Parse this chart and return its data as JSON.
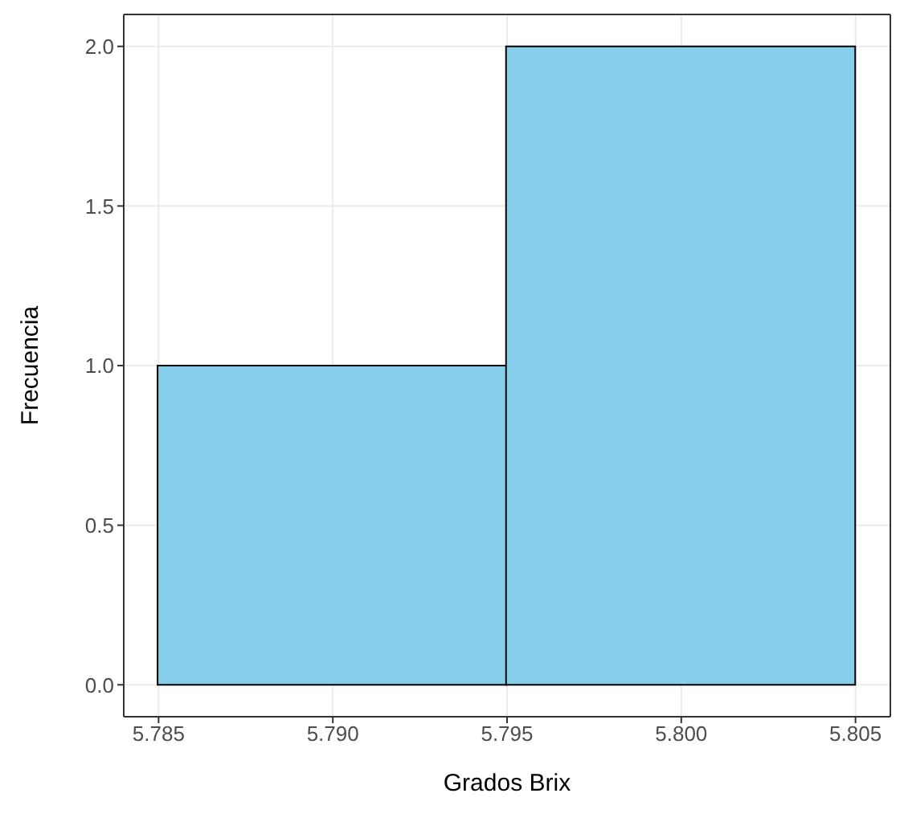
{
  "chart_data": {
    "type": "histogram",
    "xlabel": "Grados Brix",
    "ylabel": "Frecuencia",
    "bins": [
      5.785,
      5.795,
      5.805
    ],
    "values": [
      1,
      2
    ],
    "color": "#87ceeb",
    "xlim": [
      5.784,
      5.806
    ],
    "xticks": [
      {
        "value": 5.785,
        "label": "5.785"
      },
      {
        "value": 5.79,
        "label": "5.790"
      },
      {
        "value": 5.795,
        "label": "5.795"
      },
      {
        "value": 5.8,
        "label": "5.800"
      },
      {
        "value": 5.805,
        "label": "5.805"
      }
    ],
    "ylim": [
      -0.1,
      2.1
    ],
    "yticks": [
      {
        "value": 0,
        "label": "0.0"
      },
      {
        "value": 0.5,
        "label": "0.5"
      },
      {
        "value": 1,
        "label": "1.0"
      },
      {
        "value": 1.5,
        "label": "1.5"
      },
      {
        "value": 2,
        "label": "2.0"
      }
    ],
    "grid": true
  }
}
